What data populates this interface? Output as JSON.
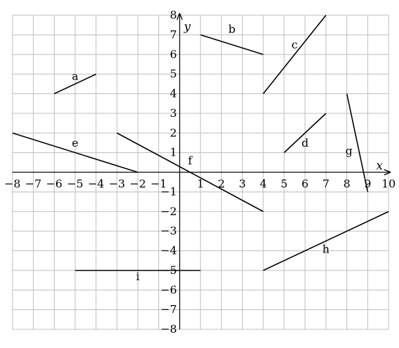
{
  "chart_data": {
    "type": "line",
    "title": "",
    "xlabel": "x",
    "ylabel": "y",
    "xlim": [
      -8,
      10
    ],
    "ylim": [
      -8,
      8
    ],
    "grid": true,
    "x_ticks": [
      "−8",
      "−7",
      "−6",
      "−5",
      "−4",
      "−3",
      "−2",
      "−1",
      "1",
      "2",
      "3",
      "4",
      "5",
      "6",
      "7",
      "8",
      "9",
      "10"
    ],
    "y_ticks": [
      "8",
      "7",
      "6",
      "5",
      "4",
      "3",
      "2",
      "1",
      "−1",
      "−2",
      "−3",
      "−4",
      "−5",
      "−6",
      "−7",
      "−8"
    ],
    "segments": [
      {
        "label": "a",
        "from": [
          -6,
          4
        ],
        "to": [
          -4,
          5
        ],
        "label_at": [
          -5,
          4.7
        ]
      },
      {
        "label": "b",
        "from": [
          1,
          7
        ],
        "to": [
          4,
          6
        ],
        "label_at": [
          2.5,
          7.1
        ]
      },
      {
        "label": "c",
        "from": [
          4,
          4
        ],
        "to": [
          7,
          8
        ],
        "label_at": [
          5.5,
          6.3
        ]
      },
      {
        "label": "d",
        "from": [
          5,
          1
        ],
        "to": [
          7,
          3
        ],
        "label_at": [
          6,
          1.3
        ]
      },
      {
        "label": "e",
        "from": [
          -8,
          2
        ],
        "to": [
          -2,
          0
        ],
        "label_at": [
          -5,
          1.3
        ]
      },
      {
        "label": "f",
        "from": [
          -3,
          2
        ],
        "to": [
          4,
          -2
        ],
        "label_at": [
          0.5,
          0.4
        ]
      },
      {
        "label": "g",
        "from": [
          8,
          4
        ],
        "to": [
          9,
          -1
        ],
        "label_at": [
          8.1,
          0.9
        ]
      },
      {
        "label": "h",
        "from": [
          4,
          -5
        ],
        "to": [
          10,
          -2
        ],
        "label_at": [
          7,
          -4.1
        ]
      },
      {
        "label": "i",
        "from": [
          -5,
          -5
        ],
        "to": [
          1,
          -5
        ],
        "label_at": [
          -2,
          -5.5
        ]
      }
    ]
  }
}
